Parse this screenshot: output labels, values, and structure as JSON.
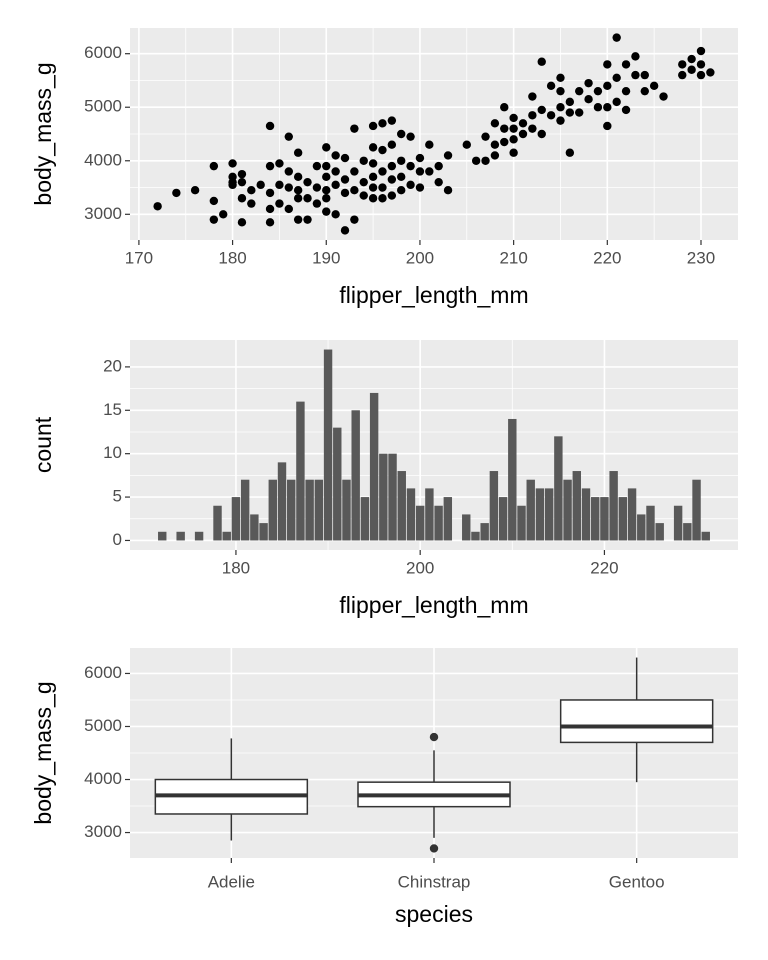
{
  "chart_data": [
    {
      "type": "scatter",
      "xlabel": "flipper_length_mm",
      "ylabel": "body_mass_g",
      "color": "#000000",
      "grid": true,
      "xlim": [
        169.05,
        233.95
      ],
      "ylim": [
        2520,
        6480
      ],
      "xticks": [
        170,
        180,
        190,
        200,
        210,
        220,
        230
      ],
      "yticks": [
        3000,
        4000,
        5000,
        6000
      ],
      "x": [
        172,
        174,
        176,
        178,
        178,
        178,
        179,
        180,
        180,
        180,
        180,
        181,
        181,
        181,
        181,
        182,
        182,
        183,
        184,
        184,
        184,
        184,
        184,
        185,
        185,
        185,
        186,
        186,
        186,
        186,
        187,
        187,
        187,
        187,
        187,
        188,
        188,
        188,
        189,
        189,
        189,
        190,
        190,
        190,
        190,
        190,
        190,
        191,
        191,
        191,
        191,
        192,
        192,
        192,
        192,
        193,
        193,
        193,
        193,
        194,
        194,
        194,
        195,
        195,
        195,
        195,
        195,
        195,
        196,
        196,
        196,
        196,
        196,
        197,
        197,
        197,
        197,
        197,
        198,
        198,
        198,
        198,
        199,
        199,
        199,
        200,
        200,
        200,
        201,
        201,
        202,
        202,
        203,
        203,
        205,
        206,
        207,
        207,
        208,
        208,
        208,
        209,
        209,
        209,
        210,
        210,
        210,
        210,
        211,
        211,
        212,
        212,
        212,
        213,
        213,
        213,
        214,
        214,
        215,
        215,
        215,
        215,
        216,
        216,
        217,
        217,
        218,
        218,
        219,
        219,
        220,
        220,
        220,
        221,
        221,
        221,
        222,
        222,
        223,
        223,
        224,
        224,
        225,
        226,
        228,
        228,
        229,
        229,
        230,
        230,
        230,
        231,
        216,
        220,
        222
      ],
      "values": [
        3150,
        3400,
        3450,
        3900,
        3250,
        2900,
        3000,
        3950,
        3700,
        3600,
        3550,
        3750,
        3600,
        3300,
        2850,
        3200,
        3450,
        3550,
        4650,
        3900,
        3400,
        3100,
        2850,
        3950,
        3550,
        3200,
        4450,
        3800,
        3500,
        3100,
        4150,
        3700,
        3450,
        3300,
        2900,
        3600,
        3300,
        2900,
        3900,
        3500,
        3200,
        4250,
        3900,
        3700,
        3450,
        3300,
        3050,
        4100,
        3800,
        3550,
        3000,
        4050,
        3650,
        3400,
        2700,
        4600,
        3800,
        3450,
        2900,
        4000,
        3600,
        3350,
        4650,
        4250,
        3950,
        3700,
        3500,
        3300,
        4700,
        4200,
        3800,
        3500,
        3300,
        4750,
        4300,
        3900,
        3650,
        3350,
        4500,
        4000,
        3700,
        3450,
        4450,
        3900,
        3550,
        4050,
        3800,
        3500,
        4300,
        3800,
        3900,
        3600,
        4100,
        3450,
        4300,
        4000,
        4000,
        4450,
        4700,
        4300,
        4100,
        5000,
        4600,
        4350,
        4800,
        4600,
        4400,
        4150,
        4700,
        4500,
        5200,
        4850,
        4600,
        5850,
        4950,
        4500,
        5400,
        4850,
        5550,
        5300,
        5000,
        4750,
        5100,
        4900,
        5300,
        4900,
        5150,
        5450,
        5000,
        5300,
        5800,
        5400,
        5000,
        6300,
        5550,
        5100,
        5800,
        5300,
        5950,
        5600,
        5600,
        5300,
        5400,
        5200,
        5800,
        5600,
        5900,
        5700,
        6050,
        5800,
        5600,
        5650,
        4150,
        4650,
        4950
      ]
    },
    {
      "type": "histogram",
      "xlabel": "flipper_length_mm",
      "ylabel": "count",
      "color": "#595959",
      "grid": true,
      "xlim": [
        168.5,
        234.5
      ],
      "ylim": [
        -1.1,
        23.1
      ],
      "xticks": [
        180,
        200,
        220
      ],
      "yticks": [
        0,
        5,
        10,
        15,
        20
      ],
      "bins": [
        171.5,
        172.5,
        173.5,
        174.5,
        175.5,
        176.5,
        177.5,
        178.5,
        179.5,
        180.5,
        181.5,
        182.5,
        183.5,
        184.5,
        185.5,
        186.5,
        187.5,
        188.5,
        189.5,
        190.5,
        191.5,
        192.5,
        193.5,
        194.5,
        195.5,
        196.5,
        197.5,
        198.5,
        199.5,
        200.5,
        201.5,
        202.5,
        203.5,
        204.5,
        205.5,
        206.5,
        207.5,
        208.5,
        209.5,
        210.5,
        211.5,
        212.5,
        213.5,
        214.5,
        215.5,
        216.5,
        217.5,
        218.5,
        219.5,
        220.5,
        221.5,
        222.5,
        223.5,
        224.5,
        225.5,
        226.5,
        227.5,
        228.5,
        229.5,
        230.5,
        231.5
      ],
      "values": [
        1,
        0,
        1,
        0,
        1,
        0,
        4,
        1,
        5,
        7,
        3,
        2,
        7,
        9,
        7,
        16,
        7,
        7,
        22,
        13,
        7,
        15,
        5,
        17,
        10,
        10,
        8,
        6,
        4,
        6,
        4,
        5,
        0,
        3,
        1,
        2,
        8,
        5,
        14,
        4,
        7,
        6,
        6,
        12,
        7,
        8,
        6,
        5,
        5,
        8,
        5,
        6,
        3,
        4,
        2,
        0,
        4,
        2,
        7,
        1
      ]
    },
    {
      "type": "box",
      "xlabel": "species",
      "ylabel": "body_mass_g",
      "color": "#FFFFFF",
      "grid": true,
      "ylim": [
        2520,
        6480
      ],
      "yticks": [
        3000,
        4000,
        5000,
        6000
      ],
      "categories": [
        "Adelie",
        "Chinstrap",
        "Gentoo"
      ],
      "whisker_low": [
        2850,
        2900,
        3950
      ],
      "q1": [
        3350,
        3488,
        4700
      ],
      "median": [
        3700,
        3700,
        5000
      ],
      "q3": [
        4000,
        3950,
        5500
      ],
      "whisker_high": [
        4775,
        4550,
        6300
      ],
      "outliers": [
        [],
        [
          2700,
          4800
        ],
        []
      ]
    }
  ]
}
